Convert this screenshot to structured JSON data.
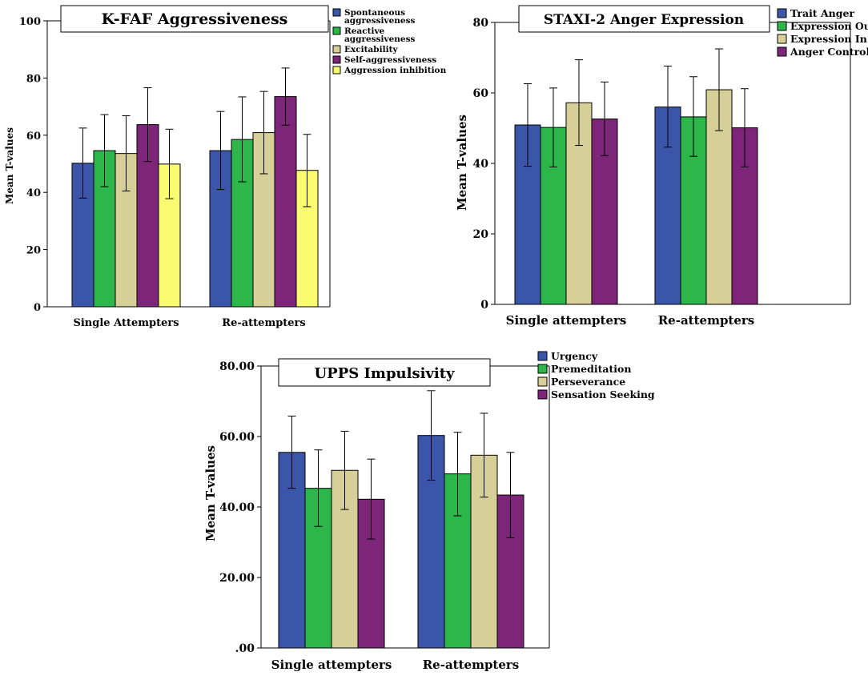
{
  "figure": {
    "colors": {
      "blue": "#3b56a8",
      "green": "#2db64a",
      "beige": "#d6cf98",
      "purple": "#7d2679",
      "yellow": "#fbfb72"
    }
  },
  "chart_data": [
    {
      "id": "kfaf",
      "type": "bar",
      "title": "K-FAF Aggressiveness",
      "xlabel": "",
      "ylabel": "Mean T-values",
      "ylim": [
        0,
        100
      ],
      "yticks": [
        "0",
        "20",
        "40",
        "60",
        "80",
        "100"
      ],
      "categories": [
        "Single Attempters",
        "Re-attempters"
      ],
      "legend_position": "top-right",
      "series": [
        {
          "name": "Spontaneous aggressiveness",
          "legend_lines": [
            "Spontaneous",
            "aggressiveness"
          ],
          "color": "#3b56a8",
          "values": [
            50.2,
            54.6
          ],
          "err_low": [
            38.0,
            41.0
          ],
          "err_high": [
            62.5,
            68.3
          ]
        },
        {
          "name": "Reactive aggressiveness",
          "legend_lines": [
            "Reactive",
            "aggressiveness"
          ],
          "color": "#2db64a",
          "values": [
            54.6,
            58.5
          ],
          "err_low": [
            42.0,
            43.7
          ],
          "err_high": [
            67.2,
            73.4
          ]
        },
        {
          "name": "Excitability",
          "legend_lines": [
            "Excitability"
          ],
          "color": "#d6cf98",
          "values": [
            53.6,
            60.9
          ],
          "err_low": [
            40.5,
            46.5
          ],
          "err_high": [
            66.8,
            75.3
          ]
        },
        {
          "name": "Self-aggressiveness",
          "legend_lines": [
            "Self-aggressiveness"
          ],
          "color": "#7d2679",
          "values": [
            63.7,
            73.5
          ],
          "err_low": [
            50.8,
            63.5
          ],
          "err_high": [
            76.6,
            83.5
          ]
        },
        {
          "name": "Aggression inhibition",
          "legend_lines": [
            "Aggression inhibition"
          ],
          "color": "#fbfb72",
          "values": [
            49.9,
            47.7
          ],
          "err_low": [
            37.8,
            35.0
          ],
          "err_high": [
            62.1,
            60.3
          ]
        }
      ]
    },
    {
      "id": "staxi",
      "type": "bar",
      "title": "STAXI-2 Anger Expression",
      "xlabel": "",
      "ylabel": "Mean T-values",
      "ylim": [
        0,
        80
      ],
      "yticks": [
        "0",
        "20",
        "40",
        "60",
        "80"
      ],
      "categories": [
        "Single attempters",
        "Re-attempters"
      ],
      "legend_position": "top-right",
      "series": [
        {
          "name": "Trait Anger",
          "legend_lines": [
            "Trait Anger"
          ],
          "color": "#3b56a8",
          "values": [
            50.9,
            56.0
          ],
          "err_low": [
            39.2,
            44.6
          ],
          "err_high": [
            62.6,
            67.6
          ]
        },
        {
          "name": "Expression Out",
          "legend_lines": [
            "Expression Out"
          ],
          "color": "#2db64a",
          "values": [
            50.2,
            53.2
          ],
          "err_low": [
            39.0,
            42.0
          ],
          "err_high": [
            61.4,
            64.6
          ]
        },
        {
          "name": "Expression In",
          "legend_lines": [
            "Expression In"
          ],
          "color": "#d6cf98",
          "values": [
            57.2,
            60.9
          ],
          "err_low": [
            45.1,
            49.3
          ],
          "err_high": [
            69.4,
            72.5
          ]
        },
        {
          "name": "Anger Control",
          "legend_lines": [
            "Anger Control"
          ],
          "color": "#7d2679",
          "values": [
            52.6,
            50.1
          ],
          "err_low": [
            42.2,
            39.0
          ],
          "err_high": [
            63.1,
            61.2
          ]
        }
      ]
    },
    {
      "id": "upps",
      "type": "bar",
      "title": "UPPS Impulsivity",
      "xlabel": "",
      "ylabel": "Mean T-values",
      "ylim": [
        0,
        80
      ],
      "yticks": [
        ".00",
        "20.00",
        "40.00",
        "60.00",
        "80.00"
      ],
      "categories": [
        "Single attempters",
        "Re-attempters"
      ],
      "legend_position": "top-right",
      "series": [
        {
          "name": "Urgency",
          "legend_lines": [
            "Urgency"
          ],
          "color": "#3b56a8",
          "values": [
            55.5,
            60.3
          ],
          "err_low": [
            45.3,
            47.6
          ],
          "err_high": [
            65.8,
            73.0
          ]
        },
        {
          "name": "Premeditation",
          "legend_lines": [
            "Premeditation"
          ],
          "color": "#2db64a",
          "values": [
            45.3,
            49.4
          ],
          "err_low": [
            34.5,
            37.5
          ],
          "err_high": [
            56.2,
            61.2
          ]
        },
        {
          "name": "Perseverance",
          "legend_lines": [
            "Perseverance"
          ],
          "color": "#d6cf98",
          "values": [
            50.4,
            54.7
          ],
          "err_low": [
            39.3,
            42.8
          ],
          "err_high": [
            61.5,
            66.6
          ]
        },
        {
          "name": "Sensation Seeking",
          "legend_lines": [
            "Sensation Seeking"
          ],
          "color": "#7d2679",
          "values": [
            42.2,
            43.4
          ],
          "err_low": [
            30.9,
            31.3
          ],
          "err_high": [
            53.6,
            55.5
          ]
        }
      ]
    }
  ]
}
